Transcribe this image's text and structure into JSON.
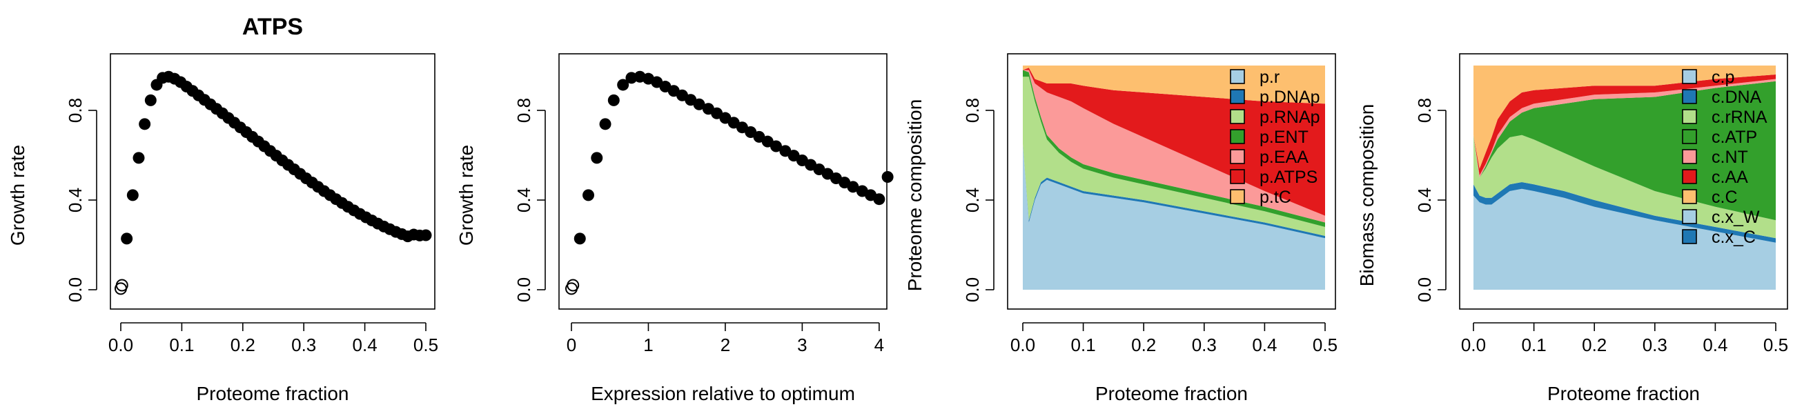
{
  "chart_data": [
    {
      "type": "scatter",
      "title": "ATPS",
      "xlabel": "Proteome fraction",
      "ylabel": "Growth rate",
      "xlim": [
        0,
        0.5
      ],
      "ylim": [
        0,
        1.0
      ],
      "xticks": [
        "0.0",
        "0.1",
        "0.2",
        "0.3",
        "0.4",
        "0.5"
      ],
      "yticks": [
        "0.0",
        "0.4",
        "0.8"
      ],
      "open_points": [
        [
          0.0,
          0.005
        ],
        [
          0.002,
          0.02
        ]
      ],
      "x": [
        0.0098,
        0.0196,
        0.0294,
        0.0392,
        0.049,
        0.0588,
        0.0686,
        0.0784,
        0.0882,
        0.098,
        0.1078,
        0.1176,
        0.1274,
        0.1372,
        0.147,
        0.1568,
        0.1666,
        0.1764,
        0.1862,
        0.196,
        0.2058,
        0.2156,
        0.2254,
        0.2352,
        0.245,
        0.2548,
        0.2646,
        0.2744,
        0.2842,
        0.294,
        0.3038,
        0.3136,
        0.3234,
        0.3332,
        0.343,
        0.3528,
        0.3626,
        0.3724,
        0.3822,
        0.392,
        0.4018,
        0.4116,
        0.4214,
        0.4312,
        0.441,
        0.4508,
        0.4606,
        0.4704,
        0.4802,
        0.49,
        0.5
      ],
      "y": [
        0.228,
        0.422,
        0.588,
        0.739,
        0.845,
        0.914,
        0.945,
        0.95,
        0.941,
        0.926,
        0.906,
        0.887,
        0.867,
        0.847,
        0.827,
        0.807,
        0.787,
        0.766,
        0.745,
        0.724,
        0.703,
        0.682,
        0.661,
        0.64,
        0.619,
        0.598,
        0.577,
        0.557,
        0.537,
        0.517,
        0.497,
        0.478,
        0.459,
        0.44,
        0.422,
        0.404,
        0.387,
        0.37,
        0.354,
        0.338,
        0.323,
        0.309,
        0.295,
        0.282,
        0.27,
        0.258,
        0.248,
        0.238,
        0.246,
        0.242,
        0.243
      ]
    },
    {
      "type": "scatter",
      "title": "",
      "xlabel": "Expression relative to optimum",
      "ylabel": "Growth rate",
      "xlim": [
        0,
        4.1
      ],
      "ylim": [
        0,
        1.0
      ],
      "xticks": [
        "0",
        "1",
        "2",
        "3",
        "4"
      ],
      "yticks": [
        "0.0",
        "0.4",
        "0.8"
      ],
      "open_points": [
        [
          0.0,
          0.005
        ],
        [
          0.02,
          0.02
        ]
      ],
      "x": [
        0.11,
        0.22,
        0.33,
        0.44,
        0.55,
        0.67,
        0.78,
        0.89,
        1.0,
        1.11,
        1.22,
        1.33,
        1.44,
        1.55,
        1.66,
        1.78,
        1.89,
        2.0,
        2.11,
        2.22,
        2.33,
        2.44,
        2.55,
        2.66,
        2.78,
        2.89,
        3.0,
        3.11,
        3.22,
        3.33,
        3.44,
        3.55,
        3.66,
        3.78,
        3.89,
        4.0,
        4.11
      ],
      "y": [
        0.228,
        0.422,
        0.588,
        0.739,
        0.845,
        0.914,
        0.945,
        0.95,
        0.941,
        0.926,
        0.906,
        0.887,
        0.867,
        0.847,
        0.827,
        0.807,
        0.787,
        0.766,
        0.745,
        0.724,
        0.703,
        0.682,
        0.661,
        0.64,
        0.619,
        0.598,
        0.577,
        0.557,
        0.537,
        0.517,
        0.497,
        0.478,
        0.459,
        0.44,
        0.422,
        0.404,
        0.503
      ]
    },
    {
      "type": "area",
      "stacked": true,
      "title": "",
      "xlabel": "Proteome fraction",
      "ylabel": "Proteome composition",
      "xlim": [
        0,
        0.5
      ],
      "ylim": [
        0,
        1.0
      ],
      "xticks": [
        "0.0",
        "0.1",
        "0.2",
        "0.3",
        "0.4",
        "0.5"
      ],
      "yticks": [
        "0.0",
        "0.4",
        "0.8"
      ],
      "legend_position": "top-right",
      "x": [
        0.0,
        0.01,
        0.02,
        0.03,
        0.04,
        0.06,
        0.08,
        0.1,
        0.15,
        0.2,
        0.3,
        0.4,
        0.5
      ],
      "series": [
        {
          "name": "p.r",
          "color": "#A6CEE3",
          "values": [
            0.65,
            0.3,
            0.4,
            0.47,
            0.49,
            0.47,
            0.45,
            0.43,
            0.41,
            0.39,
            0.34,
            0.29,
            0.23
          ]
        },
        {
          "name": "p.DNAp",
          "color": "#1F78B4",
          "values": [
            0.0,
            0.01,
            0.01,
            0.01,
            0.01,
            0.01,
            0.01,
            0.01,
            0.01,
            0.01,
            0.01,
            0.01,
            0.01
          ]
        },
        {
          "name": "p.RNAp",
          "color": "#B2DF8A",
          "values": [
            0.3,
            0.64,
            0.43,
            0.27,
            0.17,
            0.13,
            0.11,
            0.1,
            0.08,
            0.07,
            0.06,
            0.05,
            0.04
          ]
        },
        {
          "name": "p.ENT",
          "color": "#33A02C",
          "values": [
            0.03,
            0.02,
            0.02,
            0.02,
            0.02,
            0.02,
            0.02,
            0.02,
            0.02,
            0.02,
            0.02,
            0.02,
            0.02
          ]
        },
        {
          "name": "p.EAA",
          "color": "#FB9A99",
          "values": [
            0.0,
            0.01,
            0.06,
            0.13,
            0.19,
            0.23,
            0.25,
            0.25,
            0.22,
            0.19,
            0.13,
            0.07,
            0.03
          ]
        },
        {
          "name": "p.ATPS",
          "color": "#E31A1C",
          "values": [
            0.0,
            0.01,
            0.02,
            0.03,
            0.04,
            0.06,
            0.08,
            0.1,
            0.15,
            0.2,
            0.3,
            0.4,
            0.5
          ]
        },
        {
          "name": "p.tC",
          "color": "#FDBF6F",
          "values": [
            0.02,
            0.01,
            0.06,
            0.07,
            0.08,
            0.08,
            0.08,
            0.09,
            0.11,
            0.12,
            0.14,
            0.16,
            0.17
          ]
        }
      ]
    },
    {
      "type": "area",
      "stacked": true,
      "title": "",
      "xlabel": "Proteome fraction",
      "ylabel": "Biomass composition",
      "xlim": [
        0,
        0.5
      ],
      "ylim": [
        0,
        1.0
      ],
      "xticks": [
        "0.0",
        "0.1",
        "0.2",
        "0.3",
        "0.4",
        "0.5"
      ],
      "yticks": [
        "0.0",
        "0.4",
        "0.8"
      ],
      "legend_position": "top-right",
      "x": [
        0.0,
        0.01,
        0.02,
        0.03,
        0.04,
        0.06,
        0.08,
        0.1,
        0.15,
        0.2,
        0.3,
        0.4,
        0.5
      ],
      "series": [
        {
          "name": "c.p",
          "color": "#A6CEE3",
          "values": [
            0.42,
            0.39,
            0.38,
            0.38,
            0.4,
            0.44,
            0.45,
            0.44,
            0.41,
            0.37,
            0.31,
            0.26,
            0.21
          ]
        },
        {
          "name": "c.DNA",
          "color": "#1F78B4",
          "values": [
            0.05,
            0.03,
            0.03,
            0.03,
            0.03,
            0.03,
            0.03,
            0.03,
            0.03,
            0.03,
            0.02,
            0.02,
            0.02
          ]
        },
        {
          "name": "c.rRNA",
          "color": "#B2DF8A",
          "values": [
            0.22,
            0.08,
            0.13,
            0.18,
            0.2,
            0.21,
            0.21,
            0.2,
            0.17,
            0.15,
            0.11,
            0.09,
            0.08
          ]
        },
        {
          "name": "c.ATP",
          "color": "#33A02C",
          "values": [
            0.0,
            0.0,
            0.01,
            0.02,
            0.04,
            0.07,
            0.1,
            0.14,
            0.22,
            0.3,
            0.42,
            0.53,
            0.62
          ]
        },
        {
          "name": "c.NT",
          "color": "#FB9A99",
          "values": [
            0.0,
            0.01,
            0.01,
            0.01,
            0.02,
            0.02,
            0.02,
            0.02,
            0.02,
            0.02,
            0.02,
            0.01,
            0.01
          ]
        },
        {
          "name": "c.AA",
          "color": "#E31A1C",
          "values": [
            0.0,
            0.03,
            0.05,
            0.06,
            0.07,
            0.07,
            0.07,
            0.06,
            0.05,
            0.04,
            0.03,
            0.03,
            0.02
          ]
        },
        {
          "name": "c.C",
          "color": "#FDBF6F",
          "values": [
            0.31,
            0.46,
            0.39,
            0.32,
            0.24,
            0.16,
            0.12,
            0.11,
            0.1,
            0.09,
            0.09,
            0.06,
            0.04
          ]
        },
        {
          "name": "c.x_W",
          "color": "#A6CEE3",
          "values": [
            0,
            0,
            0,
            0,
            0,
            0,
            0,
            0,
            0,
            0,
            0,
            0,
            0
          ]
        },
        {
          "name": "c.x_C",
          "color": "#1F78B4",
          "values": [
            0,
            0,
            0,
            0,
            0,
            0,
            0,
            0,
            0,
            0,
            0,
            0,
            0
          ]
        }
      ]
    }
  ]
}
